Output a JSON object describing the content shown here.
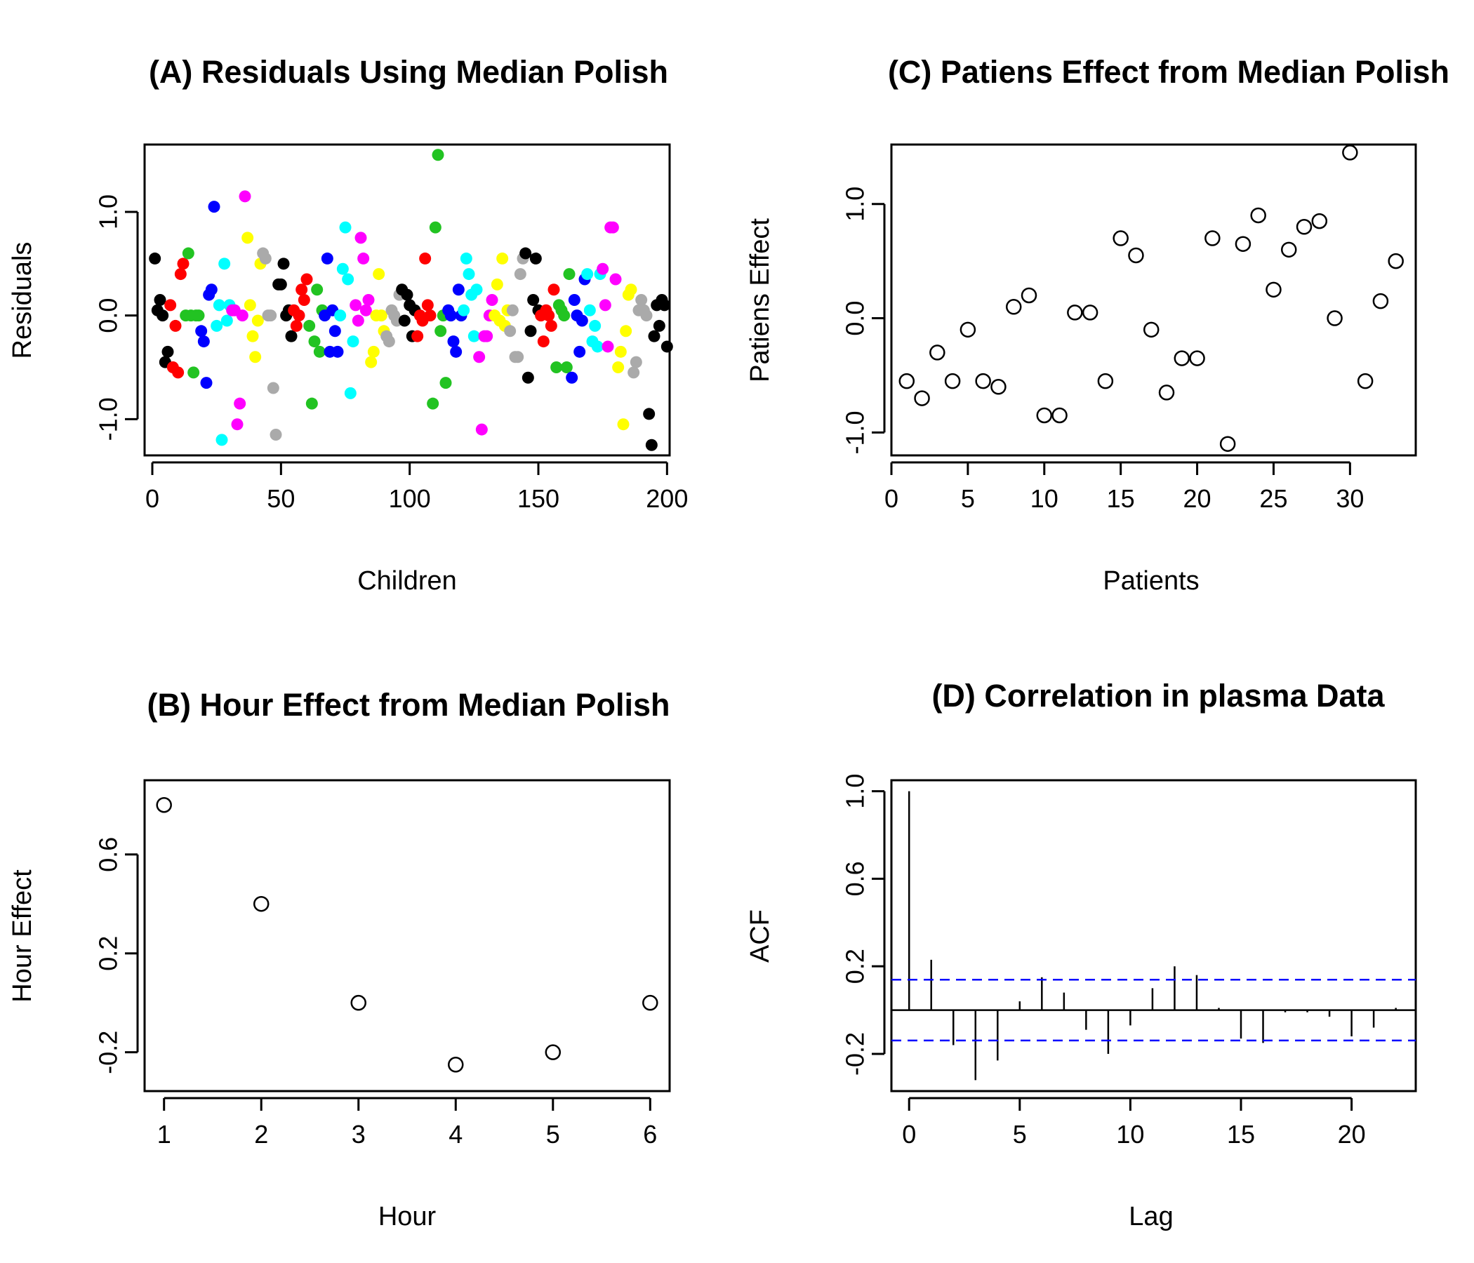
{
  "chart_data": [
    {
      "type": "scatter",
      "title": "(A) Residuals Using Median Polish",
      "xlabel": "Children",
      "ylabel": "Residuals",
      "xlim": [
        -3,
        201
      ],
      "ylim": [
        -1.35,
        1.65
      ],
      "xticks": [
        0,
        50,
        100,
        150,
        200
      ],
      "yticks": [
        -1.0,
        0.0,
        1.0
      ],
      "ytick_labels": [
        "-1.0",
        "0.0",
        "1.0"
      ],
      "marker": "filled",
      "grid": false,
      "palette": [
        "#000000",
        "#ff0000",
        "#22c322",
        "#0000ff",
        "#00ffff",
        "#ff00ff",
        "#ffff00",
        "#aaaaaa"
      ],
      "y": [
        0.55,
        0.05,
        0.15,
        0.0,
        -0.45,
        -0.35,
        0.1,
        -0.5,
        -0.1,
        -0.55,
        0.4,
        0.5,
        0.0,
        0.6,
        0.0,
        -0.55,
        0.0,
        0.0,
        -0.15,
        -0.25,
        -0.65,
        0.2,
        0.25,
        1.05,
        -0.1,
        0.1,
        -1.2,
        0.5,
        -0.05,
        0.1,
        0.05,
        0.05,
        -1.05,
        -0.85,
        0.0,
        1.15,
        0.75,
        0.1,
        -0.2,
        -0.4,
        -0.05,
        0.5,
        0.6,
        0.55,
        0.0,
        0.0,
        -0.7,
        -1.15,
        0.3,
        0.3,
        0.5,
        0.0,
        0.05,
        -0.2,
        0.05,
        -0.1,
        0.0,
        0.25,
        0.15,
        0.35,
        -0.1,
        -0.85,
        -0.25,
        0.25,
        -0.35,
        0.05,
        0.0,
        0.55,
        -0.35,
        0.05,
        -0.15,
        -0.35,
        0.0,
        0.45,
        0.85,
        0.35,
        -0.75,
        -0.25,
        0.1,
        -0.05,
        0.75,
        0.55,
        0.05,
        0.15,
        -0.45,
        -0.35,
        0.0,
        0.4,
        0.0,
        -0.15,
        -0.2,
        -0.25,
        0.05,
        0.0,
        -0.05,
        0.2,
        0.25,
        -0.05,
        0.2,
        0.1,
        -0.2,
        0.05,
        -0.2,
        0.0,
        -0.05,
        0.55,
        0.1,
        0.0,
        -0.85,
        0.85,
        1.55,
        -0.15,
        0.0,
        -0.65,
        0.05,
        0.0,
        -0.25,
        -0.35,
        0.25,
        0.0,
        0.05,
        0.55,
        0.4,
        0.2,
        -0.2,
        0.25,
        -0.4,
        -1.1,
        -0.2,
        -0.2,
        0.0,
        0.15,
        0.0,
        0.3,
        -0.05,
        0.55,
        -0.1,
        0.05,
        -0.15,
        0.05,
        -0.4,
        -0.4,
        0.4,
        0.55,
        0.6,
        -0.6,
        -0.15,
        0.15,
        0.55,
        0.05,
        0.0,
        -0.25,
        0.05,
        0.0,
        -0.1,
        0.25,
        -0.5,
        0.1,
        0.05,
        0.0,
        -0.5,
        0.4,
        -0.6,
        0.15,
        0.0,
        -0.35,
        -0.05,
        0.35,
        0.4,
        0.05,
        -0.25,
        -0.1,
        -0.3,
        0.4,
        0.45,
        0.1,
        -0.3,
        0.85,
        0.85,
        0.35,
        -0.5,
        -0.35,
        -1.05,
        -0.15,
        0.2,
        0.25,
        -0.55,
        -0.45,
        0.05,
        0.15,
        0.05,
        0.0,
        -0.95,
        -1.25,
        -0.2,
        0.1,
        -0.1,
        0.15,
        0.1,
        -0.3
      ],
      "colors": [
        0,
        0,
        0,
        0,
        0,
        0,
        1,
        1,
        1,
        1,
        1,
        1,
        2,
        2,
        2,
        2,
        2,
        2,
        3,
        3,
        3,
        3,
        3,
        3,
        4,
        4,
        4,
        4,
        4,
        4,
        5,
        5,
        5,
        5,
        5,
        5,
        6,
        6,
        6,
        6,
        6,
        6,
        7,
        7,
        7,
        7,
        7,
        7,
        0,
        0,
        0,
        0,
        0,
        0,
        1,
        1,
        1,
        1,
        1,
        1,
        2,
        2,
        2,
        2,
        2,
        2,
        3,
        3,
        3,
        3,
        3,
        3,
        4,
        4,
        4,
        4,
        4,
        4,
        5,
        5,
        5,
        5,
        5,
        5,
        6,
        6,
        6,
        6,
        6,
        6,
        7,
        7,
        7,
        7,
        7,
        7,
        0,
        0,
        0,
        0,
        0,
        0,
        1,
        1,
        1,
        1,
        1,
        1,
        2,
        2,
        2,
        2,
        2,
        2,
        3,
        3,
        3,
        3,
        3,
        3,
        4,
        4,
        4,
        4,
        4,
        4,
        5,
        5,
        5,
        5,
        5,
        5,
        6,
        6,
        6,
        6,
        6,
        6,
        7,
        7,
        7,
        7,
        7,
        7,
        0,
        0,
        0,
        0,
        0,
        0,
        1,
        1,
        1,
        1,
        1,
        1,
        2,
        2,
        2,
        2,
        2,
        2,
        3,
        3,
        3,
        3,
        3,
        3,
        4,
        4,
        4,
        4,
        4,
        4,
        5,
        5,
        5,
        5,
        5,
        5,
        6,
        6,
        6,
        6,
        6,
        6,
        7,
        7,
        7,
        7,
        7,
        7,
        0,
        0,
        0,
        0,
        0,
        0
      ]
    },
    {
      "type": "scatter",
      "title": "(C) Patiens Effect from Median Polish",
      "xlabel": "Patients",
      "ylabel": "Patiens Effect",
      "xlim": [
        0,
        34.3
      ],
      "ylim": [
        -1.2,
        1.52
      ],
      "xticks": [
        0,
        5,
        10,
        15,
        20,
        25,
        30
      ],
      "yticks": [
        -1.0,
        0.0,
        1.0
      ],
      "ytick_labels": [
        "-1.0",
        "0.0",
        "1.0"
      ],
      "marker": "open",
      "grid": false,
      "x": [
        1,
        2,
        3,
        4,
        5,
        6,
        7,
        8,
        9,
        10,
        11,
        12,
        13,
        14,
        15,
        16,
        17,
        18,
        19,
        20,
        21,
        22,
        23,
        24,
        25,
        26,
        27,
        28,
        29,
        30,
        31,
        32,
        33
      ],
      "y": [
        -0.55,
        -0.7,
        -0.3,
        -0.55,
        -0.1,
        -0.55,
        -0.6,
        0.1,
        0.2,
        -0.85,
        -0.85,
        0.05,
        0.05,
        -0.55,
        0.7,
        0.55,
        -0.1,
        -0.65,
        -0.35,
        -0.35,
        0.7,
        -1.1,
        0.65,
        0.9,
        0.25,
        0.6,
        0.8,
        0.85,
        0.0,
        1.45,
        -0.55,
        0.15,
        0.5
      ]
    },
    {
      "type": "scatter",
      "title": "(B) Hour Effect from Median Polish",
      "xlabel": "Hour",
      "ylabel": "Hour Effect",
      "xlim": [
        0.8,
        6.2
      ],
      "ylim": [
        -0.357,
        0.9
      ],
      "xticks": [
        1,
        2,
        3,
        4,
        5,
        6
      ],
      "yticks": [
        -0.2,
        0.2,
        0.6
      ],
      "ytick_labels": [
        "-0.2",
        "0.2",
        "0.6"
      ],
      "marker": "open",
      "grid": false,
      "x": [
        1,
        2,
        3,
        4,
        5,
        6
      ],
      "y": [
        0.8,
        0.4,
        0.0,
        -0.25,
        -0.2,
        0.0
      ]
    },
    {
      "type": "bar",
      "title": "(D) Correlation in plasma Data",
      "xlabel": "Lag",
      "ylabel": "ACF",
      "xlim": [
        -0.8,
        22.9
      ],
      "ylim": [
        -0.37,
        1.05
      ],
      "xticks": [
        0,
        5,
        10,
        15,
        20
      ],
      "yticks": [
        -0.2,
        0.2,
        0.6,
        1.0
      ],
      "ytick_labels": [
        "-0.2",
        "0.2",
        "0.6",
        "1.0"
      ],
      "grid": false,
      "x": [
        0,
        1,
        2,
        3,
        4,
        5,
        6,
        7,
        8,
        9,
        10,
        11,
        12,
        13,
        14,
        15,
        16,
        17,
        18,
        19,
        20,
        21,
        22
      ],
      "values": [
        1.0,
        0.23,
        -0.16,
        -0.32,
        -0.23,
        0.04,
        0.15,
        0.08,
        -0.09,
        -0.2,
        -0.07,
        0.1,
        0.2,
        0.16,
        0.01,
        -0.13,
        -0.15,
        -0.01,
        -0.01,
        -0.03,
        -0.12,
        -0.08,
        0.01
      ],
      "confidence_bounds": [
        0.139,
        -0.139
      ]
    }
  ]
}
